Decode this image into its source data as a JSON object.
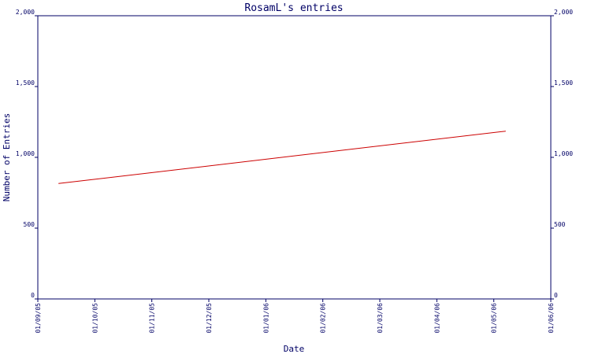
{
  "chart_data": {
    "type": "line",
    "title": "RosamL's entries",
    "xlabel": "Date",
    "ylabel": "Number of Entries",
    "x_ticks": [
      "01/09/05",
      "01/10/05",
      "01/11/05",
      "01/12/05",
      "01/01/06",
      "01/02/06",
      "01/03/06",
      "01/04/06",
      "01/05/06",
      "01/06/06"
    ],
    "y_ticks": [
      "0",
      "500",
      "1,000",
      "1,500",
      "2,000"
    ],
    "ylim": [
      0,
      2000
    ],
    "xlim": [
      "2005-09-01",
      "2006-06-01"
    ],
    "grid": false,
    "colors": {
      "axis": "#000066",
      "line": "#cc0000"
    },
    "series": [
      {
        "x": [
          "2005-09-12",
          "2006-05-08"
        ],
        "values": [
          815,
          1185
        ]
      }
    ]
  }
}
